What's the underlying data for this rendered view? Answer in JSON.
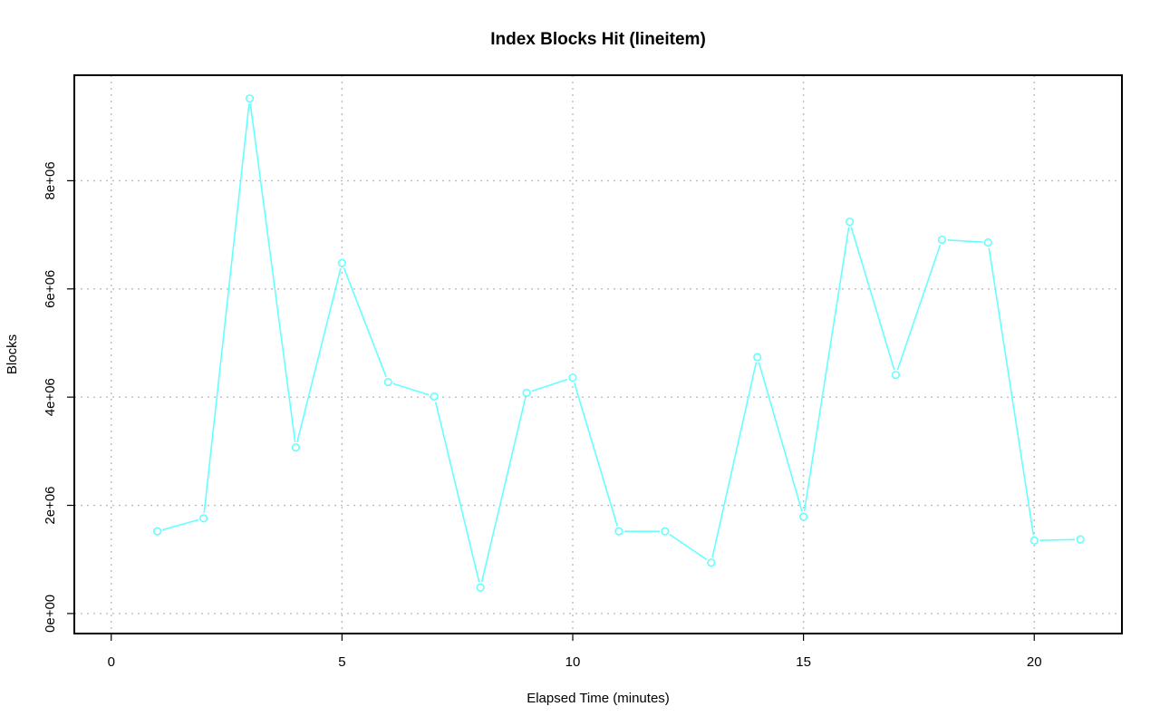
{
  "chart_data": {
    "type": "line",
    "title": "Index Blocks Hit (lineitem)",
    "xlabel": "Elapsed Time (minutes)",
    "ylabel": "Blocks",
    "xlim": [
      -0.8,
      21.9
    ],
    "ylim": [
      -370000,
      9950000
    ],
    "x_ticks": [
      0,
      5,
      10,
      15,
      20
    ],
    "x_tick_labels": [
      "0",
      "5",
      "10",
      "15",
      "20"
    ],
    "y_ticks": [
      0,
      2000000,
      4000000,
      6000000,
      8000000
    ],
    "y_tick_labels": [
      "0e+00",
      "2e+06",
      "4e+06",
      "6e+06",
      "8e+06"
    ],
    "grid": true,
    "series": [
      {
        "color": "#66ffff",
        "marker": "circle",
        "x": [
          1,
          2,
          3,
          4,
          5,
          6,
          7,
          8,
          9,
          10,
          11,
          12,
          13,
          14,
          15,
          16,
          17,
          18,
          19,
          20,
          21
        ],
        "y": [
          1520000,
          1760000,
          9520000,
          3070000,
          6480000,
          4280000,
          4010000,
          480000,
          4080000,
          4360000,
          1520000,
          1520000,
          940000,
          4740000,
          1790000,
          7240000,
          4410000,
          6910000,
          6860000,
          1350000,
          1370000
        ]
      }
    ]
  }
}
